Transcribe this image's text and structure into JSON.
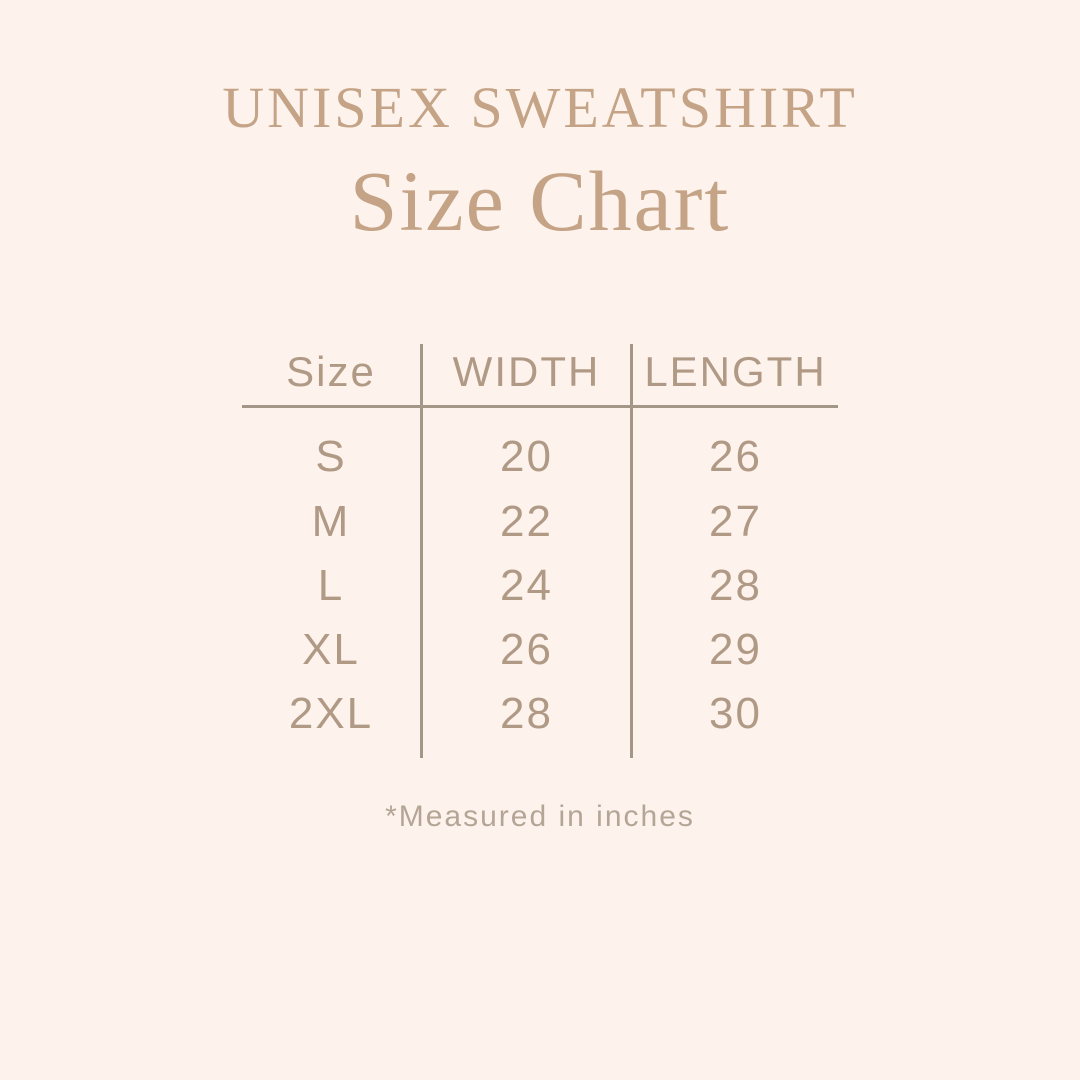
{
  "page": {
    "background_color": "#fdf3ec",
    "accent_color": "#c4a386",
    "text_color": "#b09a86",
    "line_color": "#a59788"
  },
  "header": {
    "title": "UNISEX SWEATSHIRT",
    "subtitle": "Size Chart"
  },
  "table": {
    "columns": [
      "Size",
      "WIDTH",
      "LENGTH"
    ],
    "rows": [
      {
        "size": "S",
        "width": "20",
        "length": "26"
      },
      {
        "size": "M",
        "width": "22",
        "length": "27"
      },
      {
        "size": "L",
        "width": "24",
        "length": "28"
      },
      {
        "size": "XL",
        "width": "26",
        "length": "29"
      },
      {
        "size": "2XL",
        "width": "28",
        "length": "30"
      }
    ]
  },
  "footer": {
    "note": "*Measured in inches"
  },
  "chart_data": {
    "type": "table",
    "title": "UNISEX SWEATSHIRT Size Chart",
    "columns": [
      "Size",
      "WIDTH",
      "LENGTH"
    ],
    "rows": [
      [
        "S",
        20,
        26
      ],
      [
        "M",
        22,
        27
      ],
      [
        "L",
        24,
        28
      ],
      [
        "XL",
        26,
        29
      ],
      [
        "2XL",
        28,
        30
      ]
    ],
    "units": "inches",
    "note": "*Measured in inches"
  }
}
